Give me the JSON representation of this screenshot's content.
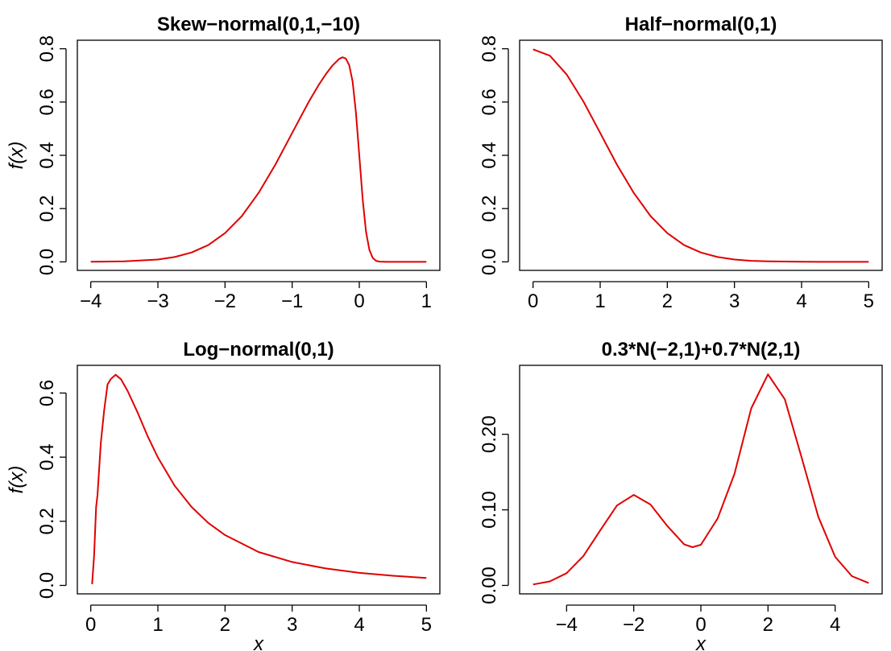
{
  "chart_data": [
    {
      "type": "line",
      "title": "Skew−normal(0,1,−10)",
      "xlabel": "",
      "ylabel": "f(x)",
      "color": "#e00000",
      "xlim": [
        -4,
        1
      ],
      "ylim": [
        0,
        0.8
      ],
      "xticks": [
        -4,
        -3,
        -2,
        -1,
        0,
        1
      ],
      "xtick_labels": [
        "−4",
        "−3",
        "−2",
        "−1",
        "0",
        "1"
      ],
      "yticks": [
        0,
        0.2,
        0.4,
        0.6,
        0.8
      ],
      "ytick_labels": [
        "0.0",
        "0.2",
        "0.4",
        "0.6",
        "0.8"
      ],
      "series": [
        {
          "x": [
            -4,
            -3.5,
            -3,
            -2.75,
            -2.5,
            -2.25,
            -2,
            -1.75,
            -1.5,
            -1.25,
            -1,
            -0.75,
            -0.6,
            -0.5,
            -0.4,
            -0.3,
            -0.25,
            -0.2,
            -0.15,
            -0.1,
            -0.05,
            0,
            0.05,
            0.1,
            0.15,
            0.2,
            0.25,
            0.3,
            0.4,
            0.5,
            1
          ],
          "y": [
            0.0003,
            0.0017,
            0.0089,
            0.018,
            0.035,
            0.063,
            0.108,
            0.172,
            0.259,
            0.365,
            0.484,
            0.602,
            0.666,
            0.704,
            0.737,
            0.762,
            0.768,
            0.763,
            0.738,
            0.677,
            0.561,
            0.399,
            0.235,
            0.114,
            0.045,
            0.0148,
            0.004,
            0.001,
            0.0001,
            0,
            0
          ]
        }
      ]
    },
    {
      "type": "line",
      "title": "Half−normal(0,1)",
      "xlabel": "",
      "ylabel": "",
      "color": "#e00000",
      "xlim": [
        0,
        5
      ],
      "ylim": [
        0,
        0.8
      ],
      "xticks": [
        0,
        1,
        2,
        3,
        4,
        5
      ],
      "xtick_labels": [
        "0",
        "1",
        "2",
        "3",
        "4",
        "5"
      ],
      "yticks": [
        0,
        0.2,
        0.4,
        0.6,
        0.8
      ],
      "ytick_labels": [
        "0.0",
        "0.2",
        "0.4",
        "0.6",
        "0.8"
      ],
      "series": [
        {
          "x": [
            0,
            0.25,
            0.5,
            0.75,
            1,
            1.25,
            1.5,
            1.75,
            2,
            2.25,
            2.5,
            2.75,
            3,
            3.25,
            3.5,
            4,
            4.5,
            5
          ],
          "y": [
            0.798,
            0.774,
            0.704,
            0.602,
            0.484,
            0.365,
            0.259,
            0.172,
            0.108,
            0.063,
            0.035,
            0.018,
            0.0089,
            0.0041,
            0.0017,
            0.0003,
            0,
            0
          ]
        }
      ]
    },
    {
      "type": "line",
      "title": "Log−normal(0,1)",
      "xlabel": "x",
      "ylabel": "f(x)",
      "color": "#e00000",
      "xlim": [
        0,
        5
      ],
      "ylim": [
        0,
        0.66
      ],
      "xticks": [
        0,
        1,
        2,
        3,
        4,
        5
      ],
      "xtick_labels": [
        "0",
        "1",
        "2",
        "3",
        "4",
        "5"
      ],
      "yticks": [
        0,
        0.2,
        0.4,
        0.6
      ],
      "ytick_labels": [
        "0.0",
        "0.2",
        "0.4",
        "0.6"
      ],
      "series": [
        {
          "x": [
            0.02,
            0.05,
            0.08,
            0.1,
            0.15,
            0.2,
            0.25,
            0.3,
            0.37,
            0.45,
            0.55,
            0.7,
            0.85,
            1,
            1.25,
            1.5,
            1.75,
            2,
            2.5,
            3,
            3.5,
            4,
            4.5,
            5
          ],
          "y": [
            0.004,
            0.092,
            0.244,
            0.281,
            0.446,
            0.546,
            0.627,
            0.644,
            0.657,
            0.643,
            0.606,
            0.538,
            0.464,
            0.399,
            0.311,
            0.245,
            0.195,
            0.157,
            0.104,
            0.073,
            0.053,
            0.039,
            0.03,
            0.023
          ]
        }
      ]
    },
    {
      "type": "line",
      "title": "0.3*N(−2,1)+0.7*N(2,1)",
      "xlabel": "x",
      "ylabel": "",
      "color": "#e00000",
      "xlim": [
        -5,
        5
      ],
      "ylim": [
        0,
        0.28
      ],
      "xticks": [
        -4,
        -2,
        0,
        2,
        4
      ],
      "xtick_labels": [
        "−4",
        "−2",
        "0",
        "2",
        "4"
      ],
      "yticks": [
        0,
        0.1,
        0.2
      ],
      "ytick_labels": [
        "0.00",
        "0.10",
        "0.20"
      ],
      "series": [
        {
          "x": [
            -5,
            -4.5,
            -4,
            -3.5,
            -3,
            -2.5,
            -2,
            -1.5,
            -1,
            -0.5,
            -0.25,
            0,
            0.5,
            1,
            1.5,
            2,
            2.5,
            3,
            3.5,
            4,
            4.5,
            5
          ],
          "y": [
            0.0013,
            0.0053,
            0.0162,
            0.0389,
            0.0727,
            0.1057,
            0.1198,
            0.107,
            0.0787,
            0.0544,
            0.0506,
            0.0538,
            0.0886,
            0.1476,
            0.2342,
            0.2793,
            0.2463,
            0.1694,
            0.0907,
            0.0378,
            0.0122,
            0.0031
          ]
        }
      ]
    }
  ]
}
